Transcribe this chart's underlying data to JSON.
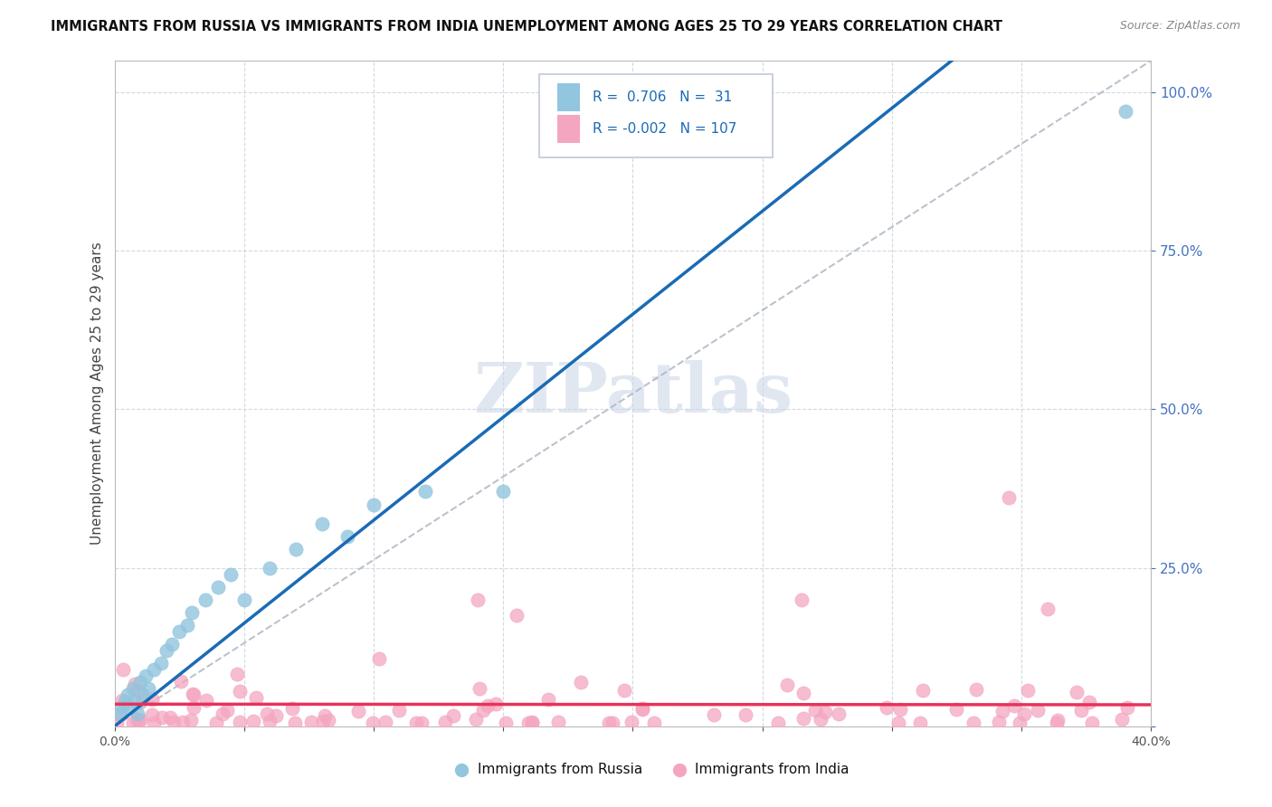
{
  "title": "IMMIGRANTS FROM RUSSIA VS IMMIGRANTS FROM INDIA UNEMPLOYMENT AMONG AGES 25 TO 29 YEARS CORRELATION CHART",
  "source": "Source: ZipAtlas.com",
  "ylabel": "Unemployment Among Ages 25 to 29 years",
  "xlim": [
    0.0,
    0.4
  ],
  "ylim": [
    0.0,
    1.05
  ],
  "ytick_values": [
    0.0,
    0.25,
    0.5,
    0.75,
    1.0
  ],
  "ytick_labels": [
    "",
    "25.0%",
    "50.0%",
    "75.0%",
    "100.0%"
  ],
  "xtick_values": [
    0.0,
    0.05,
    0.1,
    0.15,
    0.2,
    0.25,
    0.3,
    0.35,
    0.4
  ],
  "xtick_labels": [
    "0.0%",
    "",
    "",
    "",
    "",
    "",
    "",
    "",
    "40.0%"
  ],
  "russia_R": 0.706,
  "russia_N": 31,
  "india_R": -0.002,
  "india_N": 107,
  "russia_color": "#92c5de",
  "india_color": "#f4a6c0",
  "russia_line_color": "#1a6bb5",
  "india_line_color": "#e8325a",
  "trend_line_color": "#b0b8c4",
  "background_color": "#ffffff",
  "grid_color": "#c8d0dc",
  "watermark_color": "#ccd8e8",
  "ylabel_color": "#444444",
  "ytick_color": "#4472c4",
  "xtick_color": "#555555",
  "legend_edge_color": "#c0c8d8",
  "legend_text_color": "#111111",
  "legend_value_color": "#1a6bb5",
  "source_color": "#888888",
  "title_color": "#111111"
}
